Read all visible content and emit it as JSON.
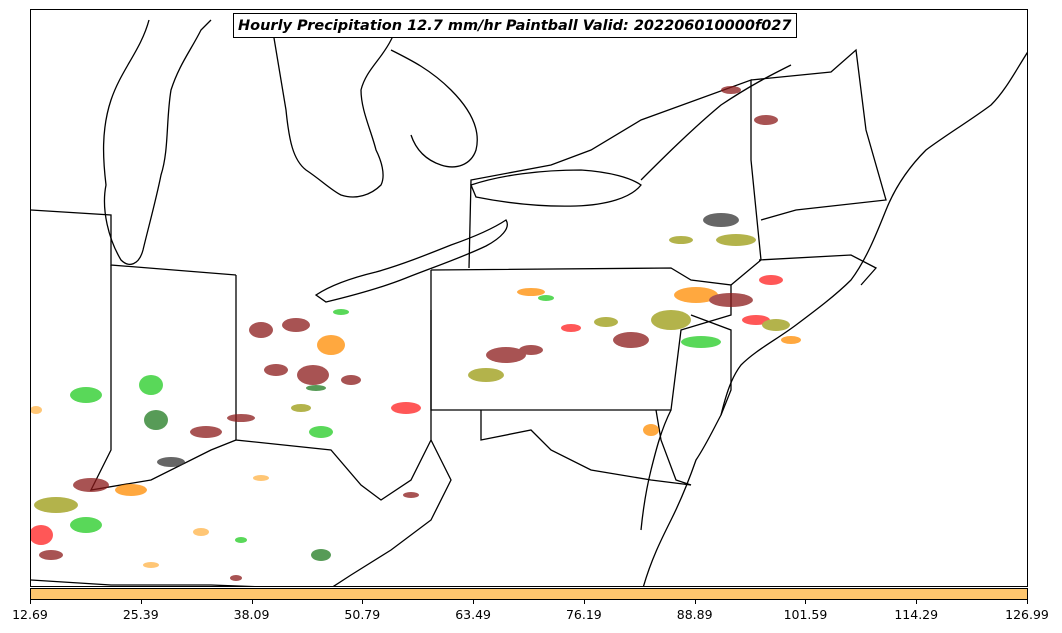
{
  "title": "Hourly Precipitation 12.7 mm/hr Paintball Valid: 202206010000f027",
  "colorbar": {
    "color": "#fec66e",
    "ticks": [
      "12.69",
      "25.39",
      "38.09",
      "50.79",
      "63.49",
      "76.19",
      "88.89",
      "101.59",
      "114.29",
      "126.99"
    ]
  },
  "palette": {
    "dark_red": "#8b1a1a",
    "red": "#ff2020",
    "orange": "#ff8c00",
    "light_orange": "#ffb347",
    "olive": "#9a9a10",
    "green": "#22cc22",
    "dark_green": "#1f7a1f",
    "dark_gray": "#333333",
    "boundaries": "#000000"
  }
}
